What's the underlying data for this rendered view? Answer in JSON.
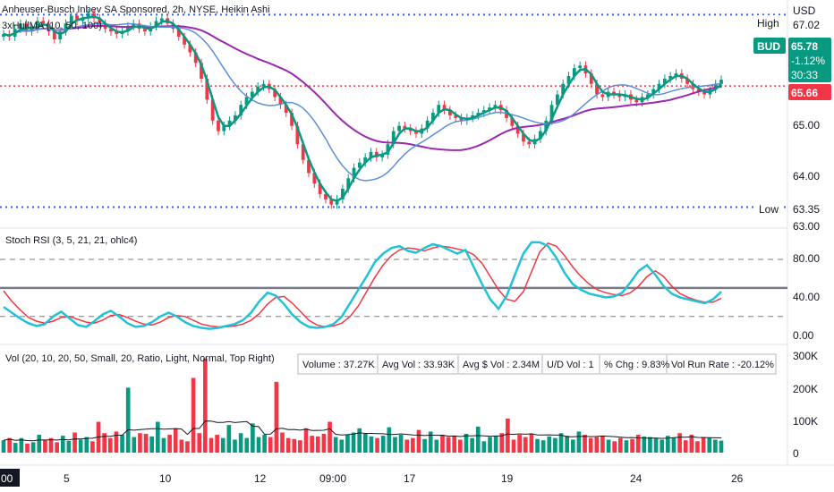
{
  "header": {
    "title": "Anheuser-Busch Inbev SA Sponsored, 2h, NYSE, Heikin Ashi",
    "indicator": "3xHullMA (10, 50, 100)"
  },
  "price_axis": {
    "currency": "USD",
    "ticks": [
      "67.02",
      "65.00",
      "64.00",
      "63.35",
      "63.00"
    ],
    "high_label": "High",
    "high_value": "67.02",
    "low_label": "Low",
    "low_value": "63.35",
    "ticker_badge": {
      "symbol": "BUD",
      "price": "65.78",
      "change": "-1.12%",
      "countdown": "30:33",
      "color": "#089981"
    },
    "line_badge": {
      "price": "65.66",
      "color": "#f23645"
    }
  },
  "stoch": {
    "title": "Stoch RSI (3, 5, 21, 21, ohlc4)",
    "ticks": [
      "80.00",
      "40.00",
      "0.00"
    ]
  },
  "volume": {
    "title": "Vol (20, 10, 20, 50, Small, 20, Ratio, Light, Normal, Top Right)",
    "ticks": [
      "300K",
      "200K",
      "100K",
      "0"
    ],
    "stats": [
      "Volume : 37.27K",
      "Avg Vol : 33.93K",
      "Avg $ Vol : 2.34M",
      "U/D Vol : 1",
      "% Chg : 9.83%",
      "Vol Run Rate : -20.12%"
    ]
  },
  "time_axis": {
    "labels": [
      "00",
      "5",
      "10",
      "12",
      "09:00",
      "17",
      "19",
      "24",
      "26"
    ]
  },
  "chart_data": {
    "type": "candlestick",
    "price_ylim": [
      62.95,
      67.3
    ],
    "high_line": 67.02,
    "low_line": 63.35,
    "last_price_line": 65.66,
    "colors": {
      "up": "#089981",
      "down": "#f23645",
      "hull_fast": "#089981",
      "hull_mid": "#5b8fd9",
      "hull_slow": "#9c27b0",
      "k": "#22c1d6",
      "d": "#f23645"
    },
    "closes": [
      66.65,
      66.6,
      66.75,
      66.85,
      66.7,
      66.75,
      66.9,
      66.85,
      66.7,
      66.55,
      66.7,
      66.85,
      67.0,
      66.9,
      66.95,
      67.05,
      66.95,
      66.85,
      66.75,
      66.7,
      66.65,
      66.7,
      66.8,
      66.85,
      66.75,
      66.7,
      66.8,
      66.9,
      66.95,
      66.85,
      66.75,
      66.6,
      66.45,
      66.3,
      66.1,
      65.8,
      65.4,
      65.0,
      64.8,
      64.9,
      65.0,
      65.1,
      65.3,
      65.45,
      65.55,
      65.65,
      65.7,
      65.6,
      65.45,
      65.3,
      65.15,
      64.9,
      64.55,
      64.25,
      64.0,
      63.8,
      63.6,
      63.5,
      63.4,
      63.5,
      63.7,
      63.9,
      64.1,
      64.2,
      64.3,
      64.4,
      64.3,
      64.35,
      64.55,
      64.8,
      64.9,
      64.85,
      64.8,
      64.75,
      64.85,
      65.0,
      65.15,
      65.3,
      65.2,
      65.1,
      65.05,
      65.0,
      65.05,
      65.1,
      65.15,
      65.2,
      65.25,
      65.3,
      65.2,
      65.05,
      64.9,
      64.75,
      64.6,
      64.55,
      64.65,
      64.8,
      65.0,
      65.3,
      65.5,
      65.7,
      65.85,
      66.0,
      66.05,
      65.9,
      65.7,
      65.5,
      65.45,
      65.55,
      65.5,
      65.45,
      65.5,
      65.4,
      65.35,
      65.45,
      65.5,
      65.6,
      65.7,
      65.8,
      65.85,
      65.9,
      65.8,
      65.7,
      65.6,
      65.55,
      65.5,
      65.6,
      65.7,
      65.78
    ],
    "stoch_k": [
      30,
      24,
      18,
      13,
      10,
      12,
      20,
      25,
      18,
      11,
      9,
      15,
      22,
      26,
      20,
      13,
      9,
      10,
      14,
      20,
      24,
      20,
      14,
      10,
      8,
      7,
      8,
      10,
      12,
      16,
      24,
      36,
      45,
      42,
      33,
      22,
      14,
      9,
      8,
      9,
      12,
      20,
      34,
      48,
      62,
      77,
      86,
      92,
      94,
      89,
      87,
      92,
      96,
      94,
      90,
      86,
      90,
      72,
      54,
      38,
      28,
      42,
      64,
      86,
      98,
      98,
      94,
      82,
      66,
      54,
      48,
      44,
      42,
      40,
      41,
      45,
      56,
      68,
      74,
      64,
      52,
      44,
      40,
      38,
      36,
      34,
      38,
      46
    ],
    "stoch_d": [
      47,
      36,
      27,
      19,
      15,
      13,
      15,
      19,
      20,
      17,
      14,
      13,
      16,
      21,
      22,
      19,
      15,
      12,
      11,
      14,
      19,
      21,
      20,
      16,
      12,
      10,
      9,
      9,
      10,
      12,
      16,
      23,
      33,
      40,
      41,
      34,
      25,
      16,
      11,
      9,
      10,
      13,
      20,
      31,
      46,
      61,
      74,
      84,
      90,
      92,
      91,
      89,
      92,
      94,
      93,
      91,
      89,
      85,
      76,
      62,
      48,
      38,
      36,
      46,
      67,
      88,
      97,
      94,
      84,
      72,
      62,
      54,
      48,
      45,
      43,
      42,
      45,
      52,
      62,
      68,
      62,
      52,
      44,
      40,
      37,
      35,
      35,
      39
    ],
    "volume": [
      38,
      45,
      30,
      45,
      28,
      32,
      55,
      38,
      45,
      32,
      52,
      36,
      62,
      40,
      48,
      35,
      95,
      60,
      45,
      65,
      55,
      200,
      48,
      60,
      58,
      50,
      95,
      45,
      55,
      75,
      40,
      35,
      230,
      60,
      290,
      45,
      55,
      45,
      85,
      40,
      60,
      45,
      90,
      48,
      55,
      48,
      218,
      62,
      45,
      42,
      38,
      75,
      52,
      50,
      58,
      95,
      48,
      40,
      55,
      62,
      75,
      58,
      50,
      45,
      52,
      78,
      48,
      55,
      40,
      45,
      70,
      42,
      65,
      40,
      55,
      48,
      52,
      40,
      58,
      45,
      80,
      35,
      48,
      52,
      60,
      105,
      40,
      55,
      48,
      58,
      42,
      38,
      50,
      45,
      60,
      52,
      40,
      65,
      55,
      45,
      48,
      52,
      40,
      35,
      45,
      38,
      42,
      55,
      50,
      48,
      45,
      40,
      52,
      45,
      60,
      38,
      55,
      35,
      48,
      45,
      40,
      37
    ]
  }
}
